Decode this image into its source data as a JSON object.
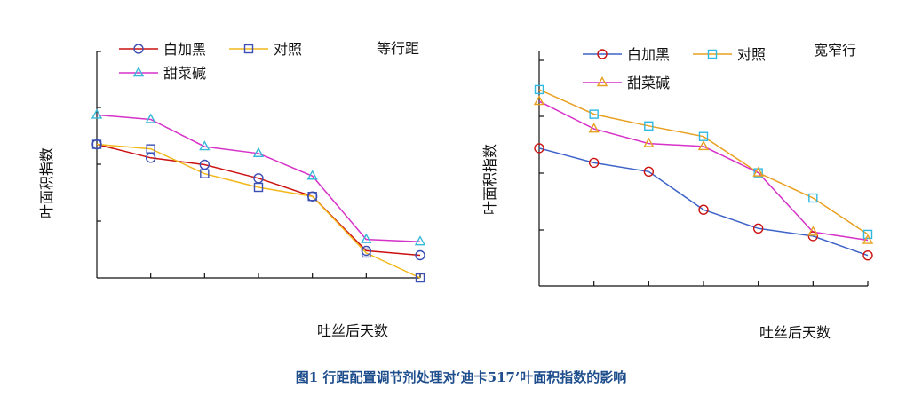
{
  "caption": "图1  行距配置调节剂处理对‘迪卡517’叶面积指数的影响",
  "chart_data": [
    {
      "type": "line",
      "title": "等行距",
      "xlabel": "吐丝后天数",
      "ylabel": "叶面积指数",
      "x_ticks": 7,
      "y_ticks": 5,
      "ylim": [
        0,
        5
      ],
      "grid": false,
      "series": [
        {
          "name": "白加黑",
          "marker": "circle",
          "line_color": "#cc1111",
          "marker_color": "#3b4fb3",
          "values": [
            2.95,
            2.65,
            2.5,
            2.2,
            1.8,
            0.6,
            0.5
          ]
        },
        {
          "name": "对照",
          "marker": "square",
          "line_color": "#f2b81c",
          "marker_color": "#3b4fb3",
          "values": [
            2.95,
            2.85,
            2.3,
            2.0,
            1.8,
            0.55,
            0.0
          ]
        },
        {
          "name": "甜菜碱",
          "marker": "triangle",
          "line_color": "#d632c8",
          "marker_color": "#38b8d8",
          "values": [
            3.6,
            3.5,
            2.9,
            2.75,
            2.25,
            0.85,
            0.8
          ]
        }
      ]
    },
    {
      "type": "line",
      "title": "宽窄行",
      "xlabel": "吐丝后天数",
      "ylabel": "叶面积指数",
      "x_ticks": 7,
      "y_ticks": 5,
      "ylim": [
        0,
        4
      ],
      "grid": false,
      "series": [
        {
          "name": "白加黑",
          "marker": "circle",
          "line_color": "#3d63c9",
          "marker_color": "#cc1111",
          "values": [
            2.35,
            2.1,
            1.95,
            1.3,
            0.98,
            0.85,
            0.52
          ]
        },
        {
          "name": "对照",
          "marker": "square",
          "line_color": "#e8a020",
          "marker_color": "#2fb8e0",
          "values": [
            3.35,
            2.93,
            2.73,
            2.55,
            1.93,
            1.5,
            0.88
          ]
        },
        {
          "name": "甜菜碱",
          "marker": "triangle",
          "line_color": "#d632c8",
          "marker_color": "#e8a020",
          "values": [
            3.15,
            2.68,
            2.43,
            2.38,
            1.93,
            0.92,
            0.78
          ]
        }
      ]
    }
  ]
}
